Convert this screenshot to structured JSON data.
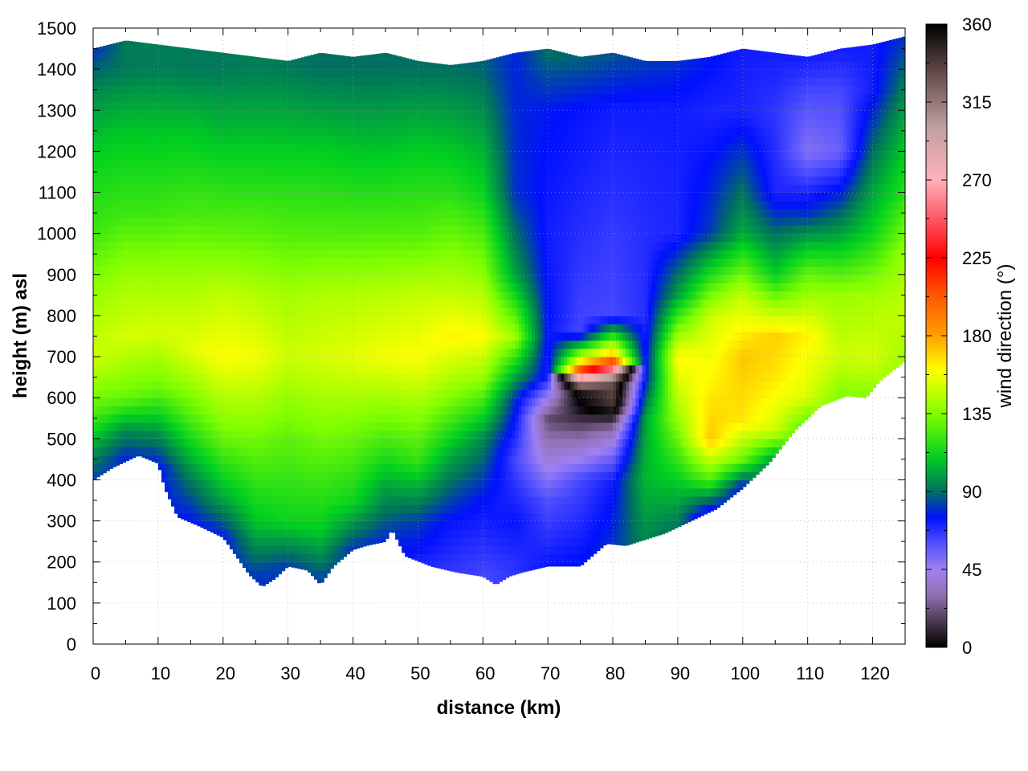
{
  "chart_data": {
    "type": "heatmap",
    "title": "",
    "xlabel": "distance (km)",
    "ylabel": "height (m) asl",
    "colorbar_label": "wind direction (°)",
    "xlim": [
      0,
      125
    ],
    "ylim": [
      0,
      1500
    ],
    "x_ticks": [
      0,
      10,
      20,
      30,
      40,
      50,
      60,
      70,
      80,
      90,
      100,
      110,
      120
    ],
    "y_ticks": [
      0,
      100,
      200,
      300,
      400,
      500,
      600,
      700,
      800,
      900,
      1000,
      1100,
      1200,
      1300,
      1400,
      1500
    ],
    "colorbar_range": [
      0,
      360
    ],
    "colorbar_ticks": [
      0,
      45,
      90,
      135,
      180,
      225,
      270,
      315,
      360
    ],
    "grid": true,
    "colorscale": [
      [
        0,
        "#000000"
      ],
      [
        15,
        "#4a3a52"
      ],
      [
        30,
        "#9070b0"
      ],
      [
        45,
        "#a080f0"
      ],
      [
        60,
        "#5050ff"
      ],
      [
        75,
        "#0010ff"
      ],
      [
        90,
        "#007060"
      ],
      [
        110,
        "#00d020"
      ],
      [
        135,
        "#80ff00"
      ],
      [
        160,
        "#ffff00"
      ],
      [
        180,
        "#ffa000"
      ],
      [
        205,
        "#ff5000"
      ],
      [
        225,
        "#ff0000"
      ],
      [
        250,
        "#ff6070"
      ],
      [
        270,
        "#ffb0b8"
      ],
      [
        300,
        "#c0a0a0"
      ],
      [
        330,
        "#6a5050"
      ],
      [
        360,
        "#000000"
      ]
    ],
    "terrain": {
      "distance": [
        0,
        3,
        7,
        10,
        11,
        13,
        16,
        20,
        24,
        26,
        28,
        30,
        33,
        35,
        37,
        40,
        42,
        45,
        46,
        48,
        52,
        56,
        60,
        62,
        64,
        66,
        70,
        75,
        79,
        82,
        88,
        92,
        96,
        100,
        104,
        108,
        112,
        116,
        119,
        121,
        123,
        125
      ],
      "height": [
        400,
        430,
        460,
        440,
        380,
        310,
        290,
        260,
        170,
        140,
        160,
        190,
        180,
        145,
        190,
        230,
        240,
        250,
        280,
        215,
        190,
        175,
        165,
        145,
        165,
        175,
        190,
        190,
        245,
        240,
        270,
        300,
        330,
        380,
        440,
        520,
        580,
        605,
        600,
        640,
        665,
        690
      ]
    },
    "data_top": {
      "distance": [
        0,
        5,
        10,
        15,
        20,
        25,
        30,
        35,
        40,
        45,
        50,
        55,
        60,
        65,
        70,
        75,
        80,
        85,
        90,
        95,
        100,
        105,
        110,
        115,
        120,
        125
      ],
      "height": [
        1450,
        1470,
        1460,
        1450,
        1440,
        1430,
        1420,
        1440,
        1430,
        1440,
        1420,
        1410,
        1420,
        1440,
        1450,
        1430,
        1440,
        1420,
        1420,
        1430,
        1450,
        1440,
        1430,
        1450,
        1460,
        1480
      ]
    },
    "columns": [
      {
        "distance": 0,
        "profile": [
          [
            400,
            82
          ],
          [
            480,
            100
          ],
          [
            560,
            125
          ],
          [
            700,
            150
          ],
          [
            850,
            140
          ],
          [
            1000,
            122
          ],
          [
            1200,
            110
          ],
          [
            1350,
            95
          ],
          [
            1450,
            80
          ]
        ]
      },
      {
        "distance": 5,
        "profile": [
          [
            450,
            78
          ],
          [
            520,
            95
          ],
          [
            600,
            130
          ],
          [
            750,
            152
          ],
          [
            900,
            140
          ],
          [
            1050,
            122
          ],
          [
            1250,
            108
          ],
          [
            1400,
            92
          ]
        ]
      },
      {
        "distance": 10,
        "profile": [
          [
            430,
            75
          ],
          [
            520,
            98
          ],
          [
            620,
            130
          ],
          [
            760,
            152
          ],
          [
            900,
            140
          ],
          [
            1050,
            122
          ],
          [
            1250,
            108
          ],
          [
            1400,
            93
          ]
        ]
      },
      {
        "distance": 15,
        "profile": [
          [
            290,
            74
          ],
          [
            400,
            92
          ],
          [
            550,
            125
          ],
          [
            720,
            155
          ],
          [
            880,
            142
          ],
          [
            1050,
            124
          ],
          [
            1250,
            108
          ],
          [
            1400,
            92
          ]
        ]
      },
      {
        "distance": 20,
        "profile": [
          [
            260,
            76
          ],
          [
            350,
            100
          ],
          [
            500,
            130
          ],
          [
            700,
            160
          ],
          [
            850,
            148
          ],
          [
            1000,
            128
          ],
          [
            1200,
            110
          ],
          [
            1400,
            92
          ]
        ]
      },
      {
        "distance": 25,
        "profile": [
          [
            160,
            80
          ],
          [
            300,
            108
          ],
          [
            500,
            132
          ],
          [
            700,
            158
          ],
          [
            850,
            145
          ],
          [
            1000,
            128
          ],
          [
            1200,
            110
          ],
          [
            1400,
            93
          ]
        ]
      },
      {
        "distance": 30,
        "profile": [
          [
            190,
            82
          ],
          [
            300,
            112
          ],
          [
            500,
            128
          ],
          [
            700,
            150
          ],
          [
            850,
            142
          ],
          [
            1000,
            126
          ],
          [
            1200,
            110
          ],
          [
            1400,
            92
          ]
        ]
      },
      {
        "distance": 35,
        "profile": [
          [
            145,
            80
          ],
          [
            280,
            110
          ],
          [
            480,
            130
          ],
          [
            700,
            152
          ],
          [
            850,
            144
          ],
          [
            1000,
            126
          ],
          [
            1200,
            110
          ],
          [
            1400,
            90
          ]
        ]
      },
      {
        "distance": 40,
        "profile": [
          [
            230,
            80
          ],
          [
            350,
            112
          ],
          [
            500,
            130
          ],
          [
            700,
            155
          ],
          [
            850,
            145
          ],
          [
            1000,
            126
          ],
          [
            1200,
            108
          ],
          [
            1400,
            90
          ]
        ]
      },
      {
        "distance": 45,
        "profile": [
          [
            250,
            78
          ],
          [
            380,
            100
          ],
          [
            520,
            128
          ],
          [
            700,
            158
          ],
          [
            850,
            146
          ],
          [
            1000,
            126
          ],
          [
            1200,
            108
          ],
          [
            1400,
            90
          ]
        ]
      },
      {
        "distance": 50,
        "profile": [
          [
            190,
            70
          ],
          [
            300,
            82
          ],
          [
            450,
            120
          ],
          [
            700,
            160
          ],
          [
            850,
            148
          ],
          [
            1000,
            126
          ],
          [
            1200,
            110
          ],
          [
            1400,
            90
          ]
        ]
      },
      {
        "distance": 55,
        "profile": [
          [
            175,
            66
          ],
          [
            300,
            74
          ],
          [
            450,
            100
          ],
          [
            600,
            135
          ],
          [
            750,
            162
          ],
          [
            900,
            142
          ],
          [
            1100,
            118
          ],
          [
            1400,
            90
          ]
        ]
      },
      {
        "distance": 60,
        "profile": [
          [
            165,
            62
          ],
          [
            350,
            75
          ],
          [
            500,
            95
          ],
          [
            650,
            140
          ],
          [
            750,
            160
          ],
          [
            900,
            138
          ],
          [
            1100,
            112
          ],
          [
            1400,
            88
          ]
        ]
      },
      {
        "distance": 65,
        "profile": [
          [
            170,
            66
          ],
          [
            300,
            74
          ],
          [
            450,
            62
          ],
          [
            600,
            80
          ],
          [
            750,
            140
          ],
          [
            900,
            100
          ],
          [
            1100,
            80
          ],
          [
            1400,
            78
          ]
        ]
      },
      {
        "distance": 70,
        "profile": [
          [
            190,
            74
          ],
          [
            350,
            60
          ],
          [
            450,
            40
          ],
          [
            550,
            20
          ],
          [
            650,
            70
          ],
          [
            800,
            75
          ],
          [
            1000,
            72
          ],
          [
            1300,
            76
          ],
          [
            1440,
            90
          ]
        ]
      },
      {
        "distance": 75,
        "profile": [
          [
            190,
            76
          ],
          [
            400,
            62
          ],
          [
            500,
            30
          ],
          [
            560,
            8
          ],
          [
            620,
            350
          ],
          [
            680,
            175
          ],
          [
            760,
            62
          ],
          [
            1000,
            68
          ],
          [
            1300,
            74
          ],
          [
            1430,
            88
          ]
        ]
      },
      {
        "distance": 80,
        "profile": [
          [
            245,
            80
          ],
          [
            400,
            72
          ],
          [
            500,
            40
          ],
          [
            540,
            20
          ],
          [
            580,
            340
          ],
          [
            640,
            330
          ],
          [
            700,
            180
          ],
          [
            800,
            62
          ],
          [
            1000,
            65
          ],
          [
            1300,
            72
          ],
          [
            1440,
            86
          ]
        ]
      },
      {
        "distance": 85,
        "profile": [
          [
            250,
            95
          ],
          [
            400,
            105
          ],
          [
            550,
            100
          ],
          [
            650,
            75
          ],
          [
            800,
            68
          ],
          [
            1000,
            68
          ],
          [
            1300,
            72
          ],
          [
            1420,
            82
          ]
        ]
      },
      {
        "distance": 90,
        "profile": [
          [
            270,
            88
          ],
          [
            400,
            110
          ],
          [
            550,
            140
          ],
          [
            700,
            162
          ],
          [
            850,
            100
          ],
          [
            1000,
            70
          ],
          [
            1300,
            72
          ],
          [
            1420,
            80
          ]
        ]
      },
      {
        "distance": 95,
        "profile": [
          [
            310,
            60
          ],
          [
            400,
            125
          ],
          [
            500,
            172
          ],
          [
            600,
            165
          ],
          [
            800,
            150
          ],
          [
            1000,
            82
          ],
          [
            1300,
            70
          ],
          [
            1430,
            76
          ]
        ]
      },
      {
        "distance": 100,
        "profile": [
          [
            380,
            72
          ],
          [
            450,
            130
          ],
          [
            550,
            165
          ],
          [
            700,
            172
          ],
          [
            850,
            148
          ],
          [
            1000,
            102
          ],
          [
            1300,
            70
          ],
          [
            1450,
            72
          ]
        ]
      },
      {
        "distance": 105,
        "profile": [
          [
            440,
            90
          ],
          [
            520,
            150
          ],
          [
            650,
            165
          ],
          [
            750,
            170
          ],
          [
            900,
            110
          ],
          [
            1100,
            70
          ],
          [
            1300,
            66
          ],
          [
            1440,
            72
          ]
        ]
      },
      {
        "distance": 110,
        "profile": [
          [
            520,
            120
          ],
          [
            600,
            152
          ],
          [
            750,
            162
          ],
          [
            900,
            130
          ],
          [
            1050,
            80
          ],
          [
            1200,
            50
          ],
          [
            1350,
            62
          ],
          [
            1430,
            72
          ]
        ]
      },
      {
        "distance": 115,
        "profile": [
          [
            605,
            135
          ],
          [
            700,
            150
          ],
          [
            850,
            140
          ],
          [
            1000,
            100
          ],
          [
            1200,
            55
          ],
          [
            1350,
            62
          ],
          [
            1450,
            72
          ]
        ]
      },
      {
        "distance": 120,
        "profile": [
          [
            600,
            135
          ],
          [
            700,
            152
          ],
          [
            850,
            142
          ],
          [
            1000,
            112
          ],
          [
            1200,
            90
          ],
          [
            1350,
            72
          ],
          [
            1460,
            72
          ]
        ]
      },
      {
        "distance": 125,
        "profile": [
          [
            690,
            140
          ],
          [
            800,
            148
          ],
          [
            950,
            140
          ],
          [
            1100,
            118
          ],
          [
            1300,
            100
          ],
          [
            1480,
            80
          ]
        ]
      }
    ]
  }
}
